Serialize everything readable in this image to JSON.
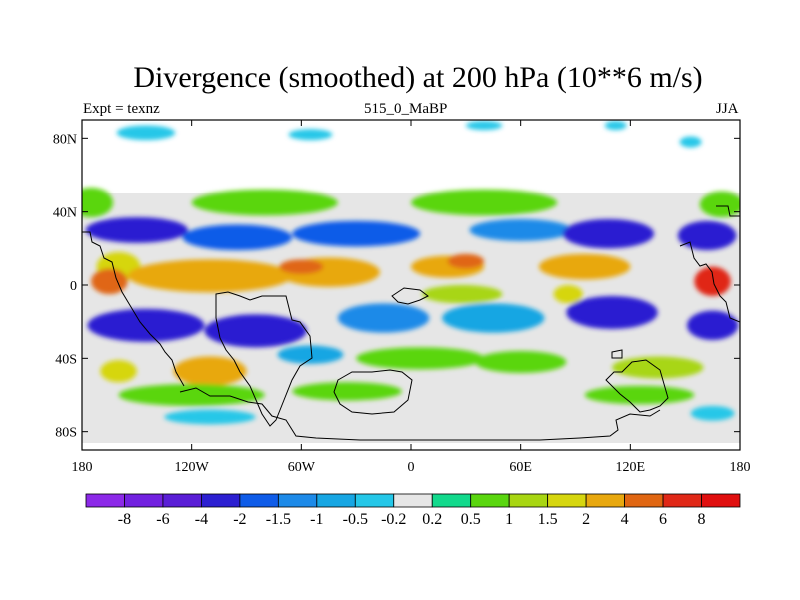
{
  "chart_data": {
    "type": "heatmap",
    "title": "Divergence (smoothed) at 200 hPa (10**6 m/s)",
    "subtitle_left": "Expt = texnz",
    "subtitle_center": "515_0_MaBP",
    "subtitle_right": "JJA",
    "x_range": [
      -180,
      180
    ],
    "y_range": [
      -90,
      90
    ],
    "x_ticks": [
      {
        "value": -180,
        "label": "180"
      },
      {
        "value": -120,
        "label": "120W"
      },
      {
        "value": -60,
        "label": "60W"
      },
      {
        "value": 0,
        "label": "0"
      },
      {
        "value": 60,
        "label": "60E"
      },
      {
        "value": 120,
        "label": "120E"
      },
      {
        "value": 180,
        "label": "180"
      }
    ],
    "y_ticks": [
      {
        "value": 80,
        "label": "80N"
      },
      {
        "value": 40,
        "label": "40N"
      },
      {
        "value": 0,
        "label": "0"
      },
      {
        "value": -40,
        "label": "40S"
      },
      {
        "value": -80,
        "label": "80S"
      }
    ],
    "colorbar": {
      "colors": [
        "#8c29e8",
        "#7221e0",
        "#5a1ed6",
        "#2c1fd1",
        "#0f5ce8",
        "#1d8ae8",
        "#17a6e3",
        "#25c7e8",
        "#e6e6e6",
        "#12d98c",
        "#5ad60f",
        "#a8d612",
        "#d6d60f",
        "#e8a80f",
        "#e06612",
        "#e02817",
        "#e00f0f"
      ],
      "labels": [
        "-8",
        "-6",
        "-4",
        "-2",
        "-1.5",
        "-1",
        "-0.5",
        "-0.2",
        "0.2",
        "0.5",
        "1",
        "1.5",
        "2",
        "4",
        "6",
        "8"
      ]
    },
    "field_blobs": [
      {
        "lon": -145,
        "lat": 83,
        "rlon": 16,
        "rlat": 4,
        "value": -0.4
      },
      {
        "lon": -55,
        "lat": 82,
        "rlon": 12,
        "rlat": 3,
        "value": -0.4
      },
      {
        "lon": 40,
        "lat": 87,
        "rlon": 10,
        "rlat": 2.5,
        "value": -0.4
      },
      {
        "lon": 112,
        "lat": 87,
        "rlon": 6,
        "rlat": 2.5,
        "value": -0.4
      },
      {
        "lon": 153,
        "lat": 78,
        "rlon": 6,
        "rlat": 3,
        "value": -0.4
      },
      {
        "lon": -175,
        "lat": 45,
        "rlon": 12,
        "rlat": 8,
        "value": 0.7
      },
      {
        "lon": -80,
        "lat": 45,
        "rlon": 40,
        "rlat": 7,
        "value": 0.6
      },
      {
        "lon": 40,
        "lat": 45,
        "rlon": 40,
        "rlat": 7,
        "value": 0.7
      },
      {
        "lon": 170,
        "lat": 44,
        "rlon": 12,
        "rlat": 7,
        "value": 0.7
      },
      {
        "lon": -150,
        "lat": 30,
        "rlon": 28,
        "rlat": 7,
        "value": -2.2
      },
      {
        "lon": -95,
        "lat": 26,
        "rlon": 30,
        "rlat": 7,
        "value": -1.7
      },
      {
        "lon": -30,
        "lat": 28,
        "rlon": 35,
        "rlat": 7,
        "value": -1.7
      },
      {
        "lon": 60,
        "lat": 30,
        "rlon": 28,
        "rlat": 6,
        "value": -1.2
      },
      {
        "lon": 108,
        "lat": 28,
        "rlon": 25,
        "rlat": 8,
        "value": -2.5
      },
      {
        "lon": 162,
        "lat": 27,
        "rlon": 16,
        "rlat": 8,
        "value": -2.5
      },
      {
        "lon": -160,
        "lat": 10,
        "rlon": 12,
        "rlat": 8,
        "value": 1.8
      },
      {
        "lon": -110,
        "lat": 5,
        "rlon": 45,
        "rlat": 9,
        "value": 3.0
      },
      {
        "lon": -45,
        "lat": 7,
        "rlon": 28,
        "rlat": 8,
        "value": 3.0
      },
      {
        "lon": 20,
        "lat": 10,
        "rlon": 20,
        "rlat": 6,
        "value": 3.0
      },
      {
        "lon": 95,
        "lat": 10,
        "rlon": 25,
        "rlat": 7,
        "value": 2.0
      },
      {
        "lon": -165,
        "lat": 2,
        "rlon": 10,
        "rlat": 7,
        "value": 5.0
      },
      {
        "lon": -60,
        "lat": 10,
        "rlon": 12,
        "rlat": 4,
        "value": 4.5
      },
      {
        "lon": 165,
        "lat": 2,
        "rlon": 10,
        "rlat": 8,
        "value": 6.5
      },
      {
        "lon": 30,
        "lat": 13,
        "rlon": 10,
        "rlat": 4,
        "value": 4.5
      },
      {
        "lon": -145,
        "lat": -22,
        "rlon": 32,
        "rlat": 9,
        "value": -3.5
      },
      {
        "lon": -85,
        "lat": -25,
        "rlon": 28,
        "rlat": 9,
        "value": -2.5
      },
      {
        "lon": -15,
        "lat": -18,
        "rlon": 25,
        "rlat": 8,
        "value": -1.2
      },
      {
        "lon": 45,
        "lat": -18,
        "rlon": 28,
        "rlat": 8,
        "value": -0.8
      },
      {
        "lon": 110,
        "lat": -15,
        "rlon": 25,
        "rlat": 9,
        "value": -2.5
      },
      {
        "lon": 165,
        "lat": -22,
        "rlon": 14,
        "rlat": 8,
        "value": -3.5
      },
      {
        "lon": 28,
        "lat": -5,
        "rlon": 22,
        "rlat": 5,
        "value": 1.0
      },
      {
        "lon": 86,
        "lat": -5,
        "rlon": 8,
        "rlat": 5,
        "value": 1.5
      },
      {
        "lon": -160,
        "lat": -47,
        "rlon": 10,
        "rlat": 6,
        "value": 1.5
      },
      {
        "lon": -110,
        "lat": -47,
        "rlon": 20,
        "rlat": 8,
        "value": 2.2
      },
      {
        "lon": -55,
        "lat": -38,
        "rlon": 18,
        "rlat": 5,
        "value": -0.7
      },
      {
        "lon": 5,
        "lat": -40,
        "rlon": 35,
        "rlat": 6,
        "value": 0.7
      },
      {
        "lon": 60,
        "lat": -42,
        "rlon": 25,
        "rlat": 6,
        "value": 0.7
      },
      {
        "lon": 135,
        "lat": -45,
        "rlon": 25,
        "rlat": 6,
        "value": 1.2
      },
      {
        "lon": -120,
        "lat": -60,
        "rlon": 40,
        "rlat": 6,
        "value": 0.6
      },
      {
        "lon": -35,
        "lat": -58,
        "rlon": 30,
        "rlat": 5,
        "value": 0.6
      },
      {
        "lon": 125,
        "lat": -60,
        "rlon": 30,
        "rlat": 5,
        "value": 0.6
      },
      {
        "lon": -110,
        "lat": -72,
        "rlon": 25,
        "rlat": 4,
        "value": -0.5
      },
      {
        "lon": 165,
        "lat": -70,
        "rlon": 12,
        "rlat": 4,
        "value": -0.4
      }
    ]
  }
}
